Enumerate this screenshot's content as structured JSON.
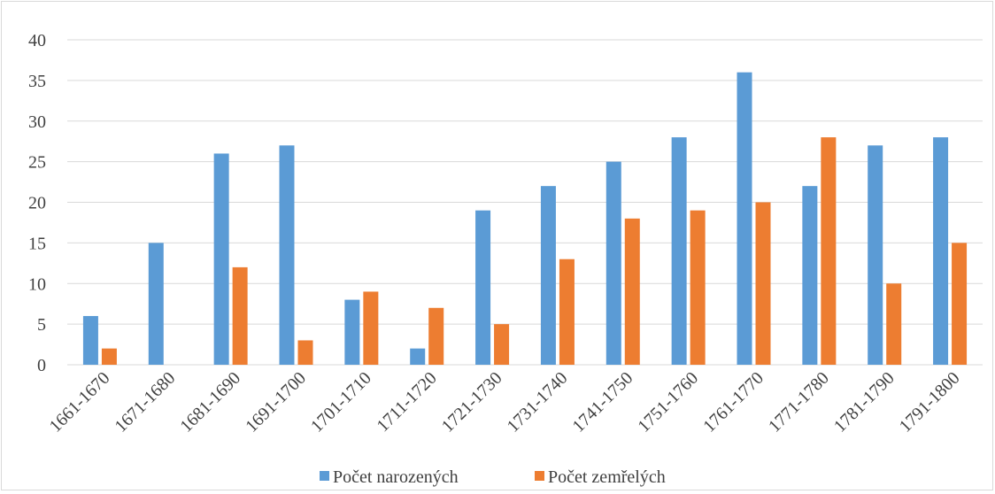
{
  "chart_data": {
    "type": "bar",
    "categories": [
      "1661-1670",
      "1671-1680",
      "1681-1690",
      "1691-1700",
      "1701-1710",
      "1711-1720",
      "1721-1730",
      "1731-1740",
      "1741-1750",
      "1751-1760",
      "1761-1770",
      "1771-1780",
      "1781-1790",
      "1791-1800"
    ],
    "series": [
      {
        "name": "Počet narozených",
        "color": "#5b9bd5",
        "values": [
          6,
          15,
          26,
          27,
          8,
          2,
          19,
          22,
          25,
          28,
          36,
          22,
          27,
          28
        ]
      },
      {
        "name": "Počet zemřelých",
        "color": "#ed7d31",
        "values": [
          2,
          0,
          12,
          3,
          9,
          7,
          5,
          13,
          18,
          19,
          20,
          28,
          10,
          15
        ]
      }
    ],
    "ylim": [
      0,
      40
    ],
    "yticks": [
      0,
      5,
      10,
      15,
      20,
      25,
      30,
      35,
      40
    ],
    "grid": true,
    "legend": "bottom",
    "title": "",
    "xlabel": "",
    "ylabel": ""
  }
}
